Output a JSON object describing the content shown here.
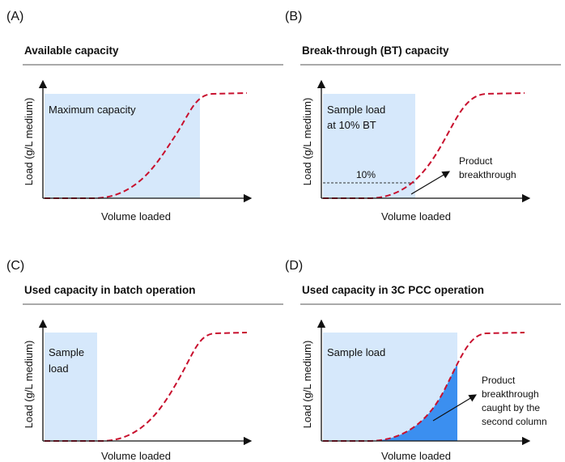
{
  "panels": [
    {
      "label": "(A)",
      "title": "Available capacity",
      "y_axis_label": "Load (g/L medium)",
      "x_axis_label": "Volume loaded",
      "region_label": [
        "Maximum capacity"
      ]
    },
    {
      "label": "(B)",
      "title": "Break-through (BT) capacity",
      "y_axis_label": "Load (g/L medium)",
      "x_axis_label": "Volume loaded",
      "region_label": [
        "Sample load",
        "at 10% BT"
      ],
      "threshold_label": "10%",
      "annotation": [
        "Product",
        "breakthrough"
      ]
    },
    {
      "label": "(C)",
      "title": "Used capacity in batch operation",
      "y_axis_label": "Load (g/L medium)",
      "x_axis_label": "Volume loaded",
      "region_label": [
        "Sample",
        "load"
      ]
    },
    {
      "label": "(D)",
      "title": "Used capacity in 3C PCC operation",
      "y_axis_label": "Load (g/L medium)",
      "x_axis_label": "Volume loaded",
      "region_label": [
        "Sample load"
      ],
      "annotation": [
        "Product",
        "breakthrough",
        "caught by the",
        "second column"
      ]
    }
  ]
}
